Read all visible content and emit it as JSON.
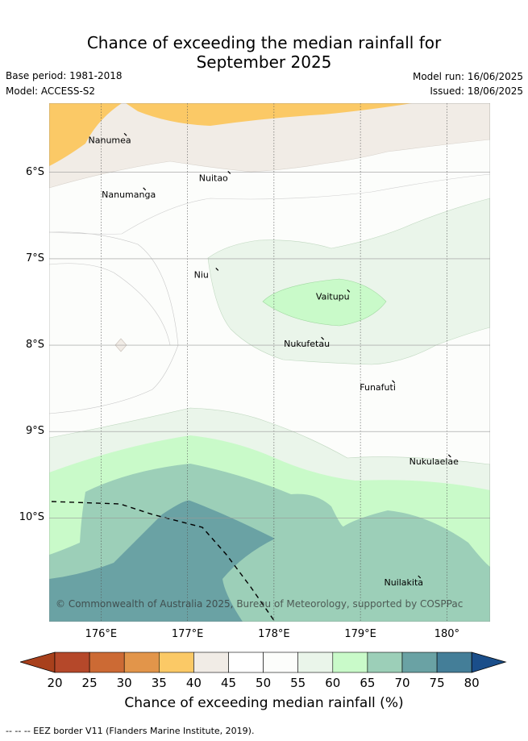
{
  "title": {
    "line1": "Chance of exceeding the median rainfall for",
    "line2": "September 2025"
  },
  "meta": {
    "base_period": "Base period: 1981-2018",
    "model": "Model: ACCESS-S2",
    "model_run": "Model run: 16/06/2025",
    "issued": "Issued: 18/06/2025"
  },
  "map": {
    "lon_ticks": [
      "176°E",
      "177°E",
      "178°E",
      "179°E",
      "180°"
    ],
    "lat_ticks": [
      "6°S",
      "7°S",
      "8°S",
      "9°S",
      "10°S"
    ],
    "lon_range": [
      175.4,
      180.5
    ],
    "lat_range": [
      -5.2,
      -11.2
    ],
    "islands": [
      {
        "name": "Nanumea",
        "lon": 176.1,
        "lat": -5.66
      },
      {
        "name": "Nuitao",
        "lon": 177.3,
        "lat": -6.1
      },
      {
        "name": "Nanumanga",
        "lon": 176.32,
        "lat": -6.29
      },
      {
        "name": "Niu",
        "lon": 177.16,
        "lat": -7.22
      },
      {
        "name": "Vaitupu",
        "lon": 178.68,
        "lat": -7.47
      },
      {
        "name": "Nukufetau",
        "lon": 178.38,
        "lat": -8.02
      },
      {
        "name": "Funafuti",
        "lon": 179.2,
        "lat": -8.52
      },
      {
        "name": "Nukulaelae",
        "lon": 179.85,
        "lat": -9.38
      },
      {
        "name": "Nuilakita",
        "lon": 179.5,
        "lat": -10.78
      }
    ],
    "copyright": "© Commonwealth of Australia 2025, Bureau of Meteorology, supported by COSPPac"
  },
  "colorbar": {
    "labels": [
      "20",
      "25",
      "30",
      "35",
      "40",
      "45",
      "50",
      "55",
      "60",
      "65",
      "70",
      "75",
      "80"
    ],
    "colors": [
      "#a8401c",
      "#b5482a",
      "#cc6a34",
      "#e2954a",
      "#fbc966",
      "#f1ece6",
      "#ffffff",
      "#fcfdfb",
      "#eaf5ea",
      "#c9fac9",
      "#9ccfb8",
      "#6aa2a4",
      "#447e98",
      "#1a4e8a"
    ],
    "title": "Chance of exceeding median rainfall (%)"
  },
  "footer": "--  --  -- EEZ border V11 (Flanders Marine Institute, 2019)."
}
